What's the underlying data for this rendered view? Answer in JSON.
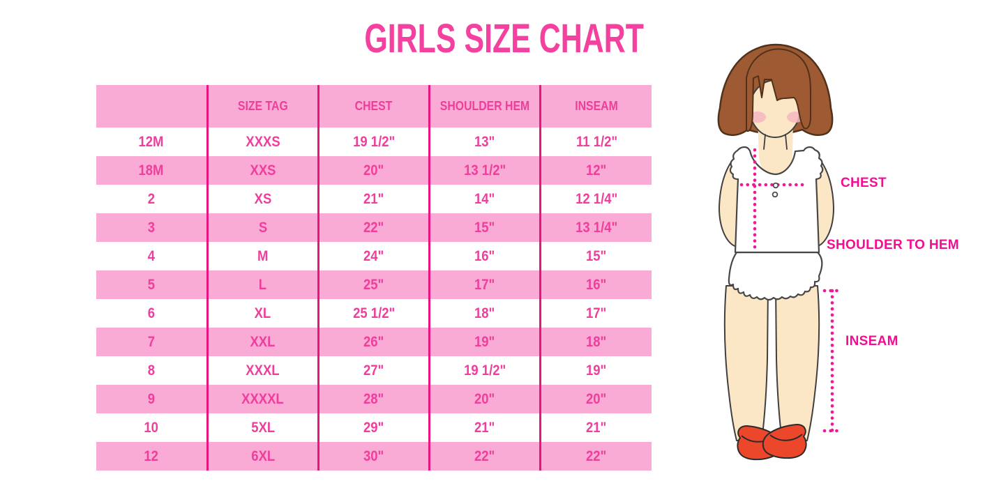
{
  "title": "GIRLS SIZE CHART",
  "chart_data": {
    "type": "table",
    "title": "GIRLS SIZE CHART",
    "columns": [
      "",
      "SIZE TAG",
      "CHEST",
      "SHOULDER HEM",
      "INSEAM"
    ],
    "rows": [
      [
        "12M",
        "XXXS",
        "19 1/2\"",
        "13\"",
        "11 1/2\""
      ],
      [
        "18M",
        "XXS",
        "20\"",
        "13 1/2\"",
        "12\""
      ],
      [
        "2",
        "XS",
        "21\"",
        "14\"",
        "12 1/4\""
      ],
      [
        "3",
        "S",
        "22\"",
        "15\"",
        "13 1/4\""
      ],
      [
        "4",
        "M",
        "24\"",
        "16\"",
        "15\""
      ],
      [
        "5",
        "L",
        "25\"",
        "17\"",
        "16\""
      ],
      [
        "6",
        "XL",
        "25 1/2\"",
        "18\"",
        "17\""
      ],
      [
        "7",
        "XXL",
        "26\"",
        "19\"",
        "18\""
      ],
      [
        "8",
        "XXXL",
        "27\"",
        "19 1/2\"",
        "19\""
      ],
      [
        "9",
        "XXXXL",
        "28\"",
        "20\"",
        "20\""
      ],
      [
        "10",
        "5XL",
        "29\"",
        "21\"",
        "21\""
      ],
      [
        "12",
        "6XL",
        "30\"",
        "22\"",
        "22\""
      ]
    ],
    "row_stripe_pattern": "white/pink alternating, header pink"
  },
  "diagram": {
    "chest_label": "CHEST",
    "shoulder_to_hem_label": "SHOULDER TO HEM",
    "inseam_label": "INSEAM"
  },
  "colors": {
    "title_pink": "#F4419F",
    "row_pink": "#F9ABD5",
    "divider_magenta": "#E8147F",
    "table_text_pink": "#EF3E9C",
    "label_magenta": "#F20D93",
    "dotted_line_magenta": "#F2169B",
    "hair_brown": "#9D5A33",
    "skin_tone": "#FBE7C6",
    "blush_pink": "#F6B6C1",
    "shoe_red": "#EC462B",
    "background": "#FFFFFF"
  }
}
